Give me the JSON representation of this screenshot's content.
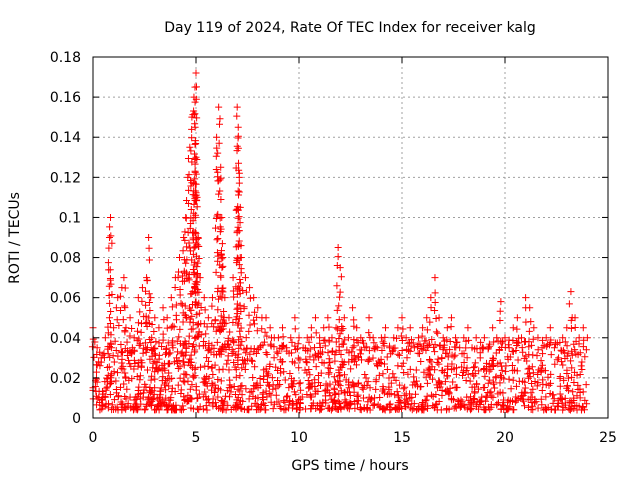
{
  "chart_data": {
    "type": "scatter",
    "title": "Day 119 of 2024, Rate Of TEC Index for receiver kalg",
    "xlabel": "GPS time / hours",
    "ylabel": "ROTI / TECUs",
    "xlim": [
      0,
      25
    ],
    "ylim": [
      0,
      0.18
    ],
    "xticks": [
      0,
      5,
      10,
      15,
      20,
      25
    ],
    "xtick_labels": [
      "0",
      "5",
      "10",
      "15",
      "20",
      "25"
    ],
    "yticks": [
      0,
      0.02,
      0.04,
      0.06,
      0.08,
      0.1,
      0.12,
      0.14,
      0.16,
      0.18
    ],
    "ytick_labels": [
      "0",
      "0.02",
      "0.04",
      "0.06",
      "0.08",
      "0.1",
      "0.12",
      "0.14",
      "0.16",
      "0.18"
    ],
    "grid": true,
    "marker": "+",
    "series": [
      {
        "name": "ROTI",
        "color": "#ff0000",
        "x": [
          0.0,
          0.2,
          0.4,
          0.6,
          0.8,
          0.8,
          0.85,
          1.0,
          1.2,
          1.4,
          1.5,
          1.6,
          1.8,
          2.0,
          2.2,
          2.4,
          2.6,
          2.7,
          2.8,
          3.0,
          3.2,
          3.4,
          3.6,
          3.8,
          4.0,
          4.2,
          4.4,
          4.5,
          4.6,
          4.7,
          4.8,
          4.9,
          4.95,
          5.0,
          5.0,
          5.05,
          5.1,
          5.2,
          5.4,
          5.6,
          5.8,
          6.0,
          6.1,
          6.2,
          6.25,
          6.3,
          6.4,
          6.6,
          6.8,
          7.0,
          7.05,
          7.1,
          7.15,
          7.2,
          7.4,
          7.6,
          7.8,
          8.0,
          8.2,
          8.4,
          8.6,
          8.8,
          9.0,
          9.2,
          9.4,
          9.6,
          9.8,
          10.0,
          10.2,
          10.4,
          10.6,
          10.8,
          11.0,
          11.2,
          11.4,
          11.6,
          11.8,
          11.9,
          12.0,
          12.2,
          12.4,
          12.6,
          12.8,
          13.0,
          13.2,
          13.4,
          13.6,
          13.8,
          14.0,
          14.2,
          14.4,
          14.6,
          14.8,
          15.0,
          15.2,
          15.4,
          15.6,
          15.8,
          16.0,
          16.2,
          16.4,
          16.6,
          16.8,
          17.0,
          17.2,
          17.4,
          17.6,
          17.8,
          18.0,
          18.2,
          18.4,
          18.6,
          18.8,
          19.0,
          19.2,
          19.4,
          19.6,
          19.8,
          20.0,
          20.2,
          20.4,
          20.6,
          20.8,
          21.0,
          21.2,
          21.4,
          21.6,
          21.8,
          22.0,
          22.2,
          22.4,
          22.6,
          22.8,
          23.0,
          23.2,
          23.4,
          23.6,
          23.8,
          24.0
        ],
        "y": [
          0.045,
          0.035,
          0.03,
          0.04,
          0.05,
          0.09,
          0.1,
          0.045,
          0.06,
          0.065,
          0.07,
          0.045,
          0.05,
          0.04,
          0.06,
          0.065,
          0.07,
          0.09,
          0.06,
          0.05,
          0.045,
          0.055,
          0.05,
          0.06,
          0.07,
          0.08,
          0.09,
          0.1,
          0.12,
          0.135,
          0.15,
          0.16,
          0.165,
          0.172,
          0.13,
          0.11,
          0.09,
          0.07,
          0.06,
          0.05,
          0.06,
          0.14,
          0.155,
          0.125,
          0.1,
          0.08,
          0.06,
          0.05,
          0.07,
          0.155,
          0.145,
          0.12,
          0.105,
          0.08,
          0.07,
          0.065,
          0.06,
          0.055,
          0.05,
          0.05,
          0.045,
          0.04,
          0.04,
          0.045,
          0.035,
          0.04,
          0.05,
          0.04,
          0.035,
          0.04,
          0.045,
          0.05,
          0.04,
          0.045,
          0.05,
          0.04,
          0.045,
          0.085,
          0.075,
          0.05,
          0.04,
          0.055,
          0.045,
          0.04,
          0.035,
          0.05,
          0.04,
          0.035,
          0.04,
          0.045,
          0.035,
          0.04,
          0.045,
          0.05,
          0.04,
          0.045,
          0.035,
          0.04,
          0.045,
          0.05,
          0.06,
          0.07,
          0.05,
          0.04,
          0.045,
          0.05,
          0.04,
          0.035,
          0.04,
          0.045,
          0.035,
          0.04,
          0.03,
          0.04,
          0.035,
          0.045,
          0.04,
          0.058,
          0.04,
          0.035,
          0.045,
          0.05,
          0.04,
          0.06,
          0.055,
          0.045,
          0.04,
          0.035,
          0.04,
          0.045,
          0.035,
          0.03,
          0.04,
          0.045,
          0.063,
          0.05,
          0.04,
          0.045,
          0.04
        ]
      }
    ],
    "dense_band": {
      "description_values": "baseline scatter between roughly 0.004 and 0.03 across 0 to 24 hours",
      "x_range": [
        0,
        24
      ],
      "y_range": [
        0.004,
        0.03
      ]
    }
  }
}
